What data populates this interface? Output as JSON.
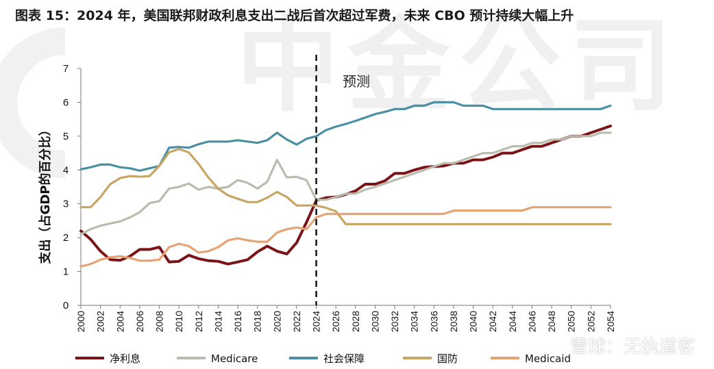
{
  "title": "图表 15：2024 年，美国联邦财政利息支出二战后首次超过军费，未来 CBO 预计持续大幅上升",
  "watermark": "中金公司",
  "site_watermark": "雪球：无执道客",
  "chart_data": {
    "type": "line",
    "ylabel": "支出（占GDP的百分比）",
    "ylim": [
      0,
      7
    ],
    "yticks": [
      0,
      1,
      2,
      3,
      4,
      5,
      6,
      7
    ],
    "xlim": [
      2000,
      2054
    ],
    "xticks": [
      2000,
      2002,
      2004,
      2006,
      2008,
      2010,
      2012,
      2014,
      2016,
      2018,
      2020,
      2022,
      2024,
      2026,
      2028,
      2030,
      2032,
      2034,
      2036,
      2038,
      2040,
      2042,
      2044,
      2046,
      2048,
      2050,
      2052,
      2054
    ],
    "forecast_start": 2024,
    "annotation": "预测",
    "legend_position": "bottom",
    "colors": {
      "net_interest": "#7a1416",
      "medicare": "#b9bcae",
      "social_security": "#4a8fa3",
      "defense": "#c7a564",
      "medicaid": "#e6a272"
    },
    "series": [
      {
        "name": "净利息",
        "key": "net_interest",
        "x": [
          2000,
          2001,
          2002,
          2003,
          2004,
          2005,
          2006,
          2007,
          2008,
          2009,
          2010,
          2011,
          2012,
          2013,
          2014,
          2015,
          2016,
          2017,
          2018,
          2019,
          2020,
          2021,
          2022,
          2023,
          2024,
          2025,
          2026,
          2027,
          2028,
          2029,
          2030,
          2031,
          2032,
          2033,
          2034,
          2035,
          2036,
          2037,
          2038,
          2039,
          2040,
          2041,
          2042,
          2043,
          2044,
          2045,
          2046,
          2047,
          2048,
          2049,
          2050,
          2051,
          2052,
          2053,
          2054
        ],
        "values": [
          2.2,
          1.95,
          1.6,
          1.35,
          1.33,
          1.45,
          1.65,
          1.65,
          1.72,
          1.28,
          1.3,
          1.48,
          1.38,
          1.32,
          1.3,
          1.22,
          1.28,
          1.35,
          1.58,
          1.75,
          1.6,
          1.52,
          1.85,
          2.45,
          3.1,
          3.18,
          3.2,
          3.28,
          3.38,
          3.58,
          3.58,
          3.68,
          3.9,
          3.9,
          4.0,
          4.08,
          4.1,
          4.12,
          4.2,
          4.2,
          4.3,
          4.3,
          4.38,
          4.5,
          4.5,
          4.6,
          4.7,
          4.7,
          4.8,
          4.9,
          5.0,
          5.0,
          5.1,
          5.2,
          5.3
        ]
      },
      {
        "name": "Medicare",
        "key": "medicare",
        "x": [
          2000,
          2001,
          2002,
          2003,
          2004,
          2005,
          2006,
          2007,
          2008,
          2009,
          2010,
          2011,
          2012,
          2013,
          2014,
          2015,
          2016,
          2017,
          2018,
          2019,
          2020,
          2021,
          2022,
          2023,
          2024,
          2025,
          2026,
          2027,
          2028,
          2029,
          2030,
          2031,
          2032,
          2033,
          2034,
          2035,
          2036,
          2037,
          2038,
          2039,
          2040,
          2041,
          2042,
          2043,
          2044,
          2045,
          2046,
          2047,
          2048,
          2049,
          2050,
          2051,
          2052,
          2053,
          2054
        ],
        "values": [
          2.1,
          2.25,
          2.35,
          2.42,
          2.48,
          2.6,
          2.75,
          3.02,
          3.08,
          3.45,
          3.5,
          3.6,
          3.42,
          3.5,
          3.45,
          3.5,
          3.7,
          3.62,
          3.45,
          3.65,
          4.3,
          3.78,
          3.8,
          3.7,
          3.12,
          3.12,
          3.2,
          3.3,
          3.3,
          3.42,
          3.5,
          3.6,
          3.7,
          3.8,
          3.9,
          4.0,
          4.1,
          4.2,
          4.2,
          4.3,
          4.4,
          4.5,
          4.5,
          4.6,
          4.7,
          4.7,
          4.8,
          4.8,
          4.9,
          4.9,
          5.0,
          5.0,
          5.0,
          5.1,
          5.1
        ]
      },
      {
        "name": "社会保障",
        "key": "social_security",
        "x": [
          2000,
          2001,
          2002,
          2003,
          2004,
          2005,
          2006,
          2007,
          2008,
          2009,
          2010,
          2011,
          2012,
          2013,
          2014,
          2015,
          2016,
          2017,
          2018,
          2019,
          2020,
          2021,
          2022,
          2023,
          2024,
          2025,
          2026,
          2027,
          2028,
          2029,
          2030,
          2031,
          2032,
          2033,
          2034,
          2035,
          2036,
          2037,
          2038,
          2039,
          2040,
          2041,
          2042,
          2043,
          2044,
          2045,
          2046,
          2047,
          2048,
          2049,
          2050,
          2051,
          2052,
          2053,
          2054
        ],
        "values": [
          4.02,
          4.08,
          4.16,
          4.16,
          4.08,
          4.05,
          3.98,
          4.05,
          4.12,
          4.66,
          4.68,
          4.66,
          4.76,
          4.84,
          4.84,
          4.84,
          4.88,
          4.84,
          4.8,
          4.88,
          5.1,
          4.9,
          4.75,
          4.92,
          5.0,
          5.18,
          5.28,
          5.36,
          5.45,
          5.55,
          5.65,
          5.72,
          5.8,
          5.8,
          5.9,
          5.9,
          6.0,
          6.0,
          6.0,
          5.9,
          5.9,
          5.9,
          5.8,
          5.8,
          5.8,
          5.8,
          5.8,
          5.8,
          5.8,
          5.8,
          5.8,
          5.8,
          5.8,
          5.8,
          5.9
        ]
      },
      {
        "name": "国防",
        "key": "defense",
        "x": [
          2000,
          2001,
          2002,
          2003,
          2004,
          2005,
          2006,
          2007,
          2008,
          2009,
          2010,
          2011,
          2012,
          2013,
          2014,
          2015,
          2016,
          2017,
          2018,
          2019,
          2020,
          2021,
          2022,
          2023,
          2024,
          2025,
          2026,
          2027,
          2028,
          2029,
          2030,
          2031,
          2032,
          2033,
          2034,
          2035,
          2036,
          2037,
          2038,
          2039,
          2040,
          2041,
          2042,
          2043,
          2044,
          2045,
          2046,
          2047,
          2048,
          2049,
          2050,
          2051,
          2052,
          2053,
          2054
        ],
        "values": [
          2.9,
          2.9,
          3.2,
          3.58,
          3.76,
          3.82,
          3.8,
          3.82,
          4.12,
          4.52,
          4.62,
          4.52,
          4.18,
          3.78,
          3.45,
          3.25,
          3.15,
          3.05,
          3.05,
          3.18,
          3.35,
          3.2,
          2.95,
          2.95,
          2.95,
          2.88,
          2.78,
          2.4,
          2.4,
          2.4,
          2.4,
          2.4,
          2.4,
          2.4,
          2.4,
          2.4,
          2.4,
          2.4,
          2.4,
          2.4,
          2.4,
          2.4,
          2.4,
          2.4,
          2.4,
          2.4,
          2.4,
          2.4,
          2.4,
          2.4,
          2.4,
          2.4,
          2.4,
          2.4,
          2.4
        ]
      },
      {
        "name": "Medicaid",
        "key": "medicaid",
        "x": [
          2000,
          2001,
          2002,
          2003,
          2004,
          2005,
          2006,
          2007,
          2008,
          2009,
          2010,
          2011,
          2012,
          2013,
          2014,
          2015,
          2016,
          2017,
          2018,
          2019,
          2020,
          2021,
          2022,
          2023,
          2024,
          2025,
          2026,
          2027,
          2028,
          2029,
          2030,
          2031,
          2032,
          2033,
          2034,
          2035,
          2036,
          2037,
          2038,
          2039,
          2040,
          2041,
          2042,
          2043,
          2044,
          2045,
          2046,
          2047,
          2048,
          2049,
          2050,
          2051,
          2052,
          2053,
          2054
        ],
        "values": [
          1.15,
          1.22,
          1.35,
          1.42,
          1.45,
          1.4,
          1.32,
          1.32,
          1.35,
          1.72,
          1.82,
          1.75,
          1.56,
          1.6,
          1.72,
          1.92,
          1.98,
          1.92,
          1.88,
          1.88,
          2.15,
          2.25,
          2.3,
          2.25,
          2.6,
          2.7,
          2.7,
          2.7,
          2.7,
          2.7,
          2.7,
          2.7,
          2.7,
          2.7,
          2.7,
          2.7,
          2.7,
          2.7,
          2.8,
          2.8,
          2.8,
          2.8,
          2.8,
          2.8,
          2.8,
          2.8,
          2.9,
          2.9,
          2.9,
          2.9,
          2.9,
          2.9,
          2.9,
          2.9,
          2.9
        ]
      }
    ]
  }
}
